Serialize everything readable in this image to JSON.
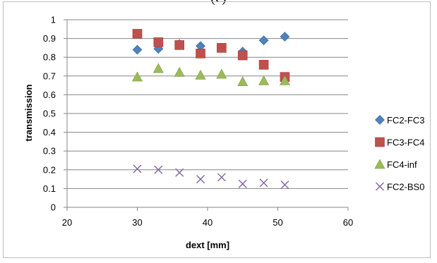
{
  "chart_data": {
    "type": "scatter",
    "title": "(c)",
    "xlabel": "dext [mm]",
    "ylabel": "transmission",
    "xlim": [
      20,
      60
    ],
    "ylim": [
      0,
      1
    ],
    "x_ticks": [
      "20",
      "30",
      "40",
      "50",
      "60"
    ],
    "y_ticks": [
      "0",
      "0.1",
      "0.2",
      "0.3",
      "0.4",
      "0.5",
      "0.6",
      "0.7",
      "0.8",
      "0.9",
      "1"
    ],
    "grid": "horizontal",
    "legend_position": "right",
    "series": [
      {
        "name": "FC2-FC3",
        "marker": "diamond",
        "color": "#4f81bd",
        "x": [
          30,
          33,
          36,
          39,
          42,
          45,
          48,
          51
        ],
        "y": [
          0.84,
          0.845,
          0.87,
          0.86,
          0.85,
          0.83,
          0.89,
          0.91
        ]
      },
      {
        "name": "FC3-FC4",
        "marker": "square",
        "color": "#c0504d",
        "x": [
          30,
          33,
          36,
          39,
          42,
          45,
          48,
          51
        ],
        "y": [
          0.925,
          0.88,
          0.865,
          0.82,
          0.85,
          0.81,
          0.76,
          0.695
        ]
      },
      {
        "name": "FC4-inf",
        "marker": "triangle",
        "color": "#9bbb59",
        "x": [
          30,
          33,
          36,
          39,
          42,
          45,
          48,
          51
        ],
        "y": [
          0.695,
          0.74,
          0.72,
          0.705,
          0.71,
          0.67,
          0.675,
          0.675
        ]
      },
      {
        "name": "FC2-BS0",
        "marker": "x",
        "color": "#8064a2",
        "x": [
          30,
          33,
          36,
          39,
          42,
          45,
          48,
          51
        ],
        "y": [
          0.205,
          0.2,
          0.185,
          0.15,
          0.16,
          0.125,
          0.13,
          0.12
        ]
      }
    ]
  }
}
